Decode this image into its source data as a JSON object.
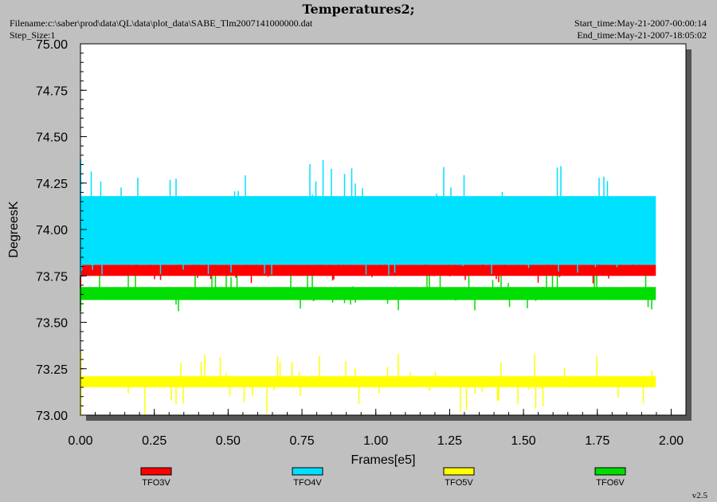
{
  "header": {
    "title": "Temperatures2;",
    "filename": "Filename:c:\\saber\\prod\\data\\QL\\data\\plot_data\\SABE_Tlm2007141000000.dat",
    "step_size": "Step_Size:1",
    "start_time": "Start_time:May-21-2007-00:00:14",
    "end_time": "End_time:May-21-2007-18:05:02"
  },
  "version": "v2.5",
  "chart_data": {
    "type": "line",
    "title": "Temperatures2;",
    "xlabel": "Frames[e5]",
    "ylabel": "DegreesK",
    "xlim": [
      0,
      2.05
    ],
    "ylim": [
      73.0,
      75.0
    ],
    "xticks": [
      "0.00",
      "0.25",
      "0.50",
      "0.75",
      "1.00",
      "1.25",
      "1.50",
      "1.75",
      "2.00"
    ],
    "yticks": [
      "73.00",
      "73.25",
      "73.50",
      "73.75",
      "74.00",
      "74.25",
      "74.50",
      "74.75",
      "75.00"
    ],
    "grid": false,
    "legend_position": "bottom",
    "series": [
      {
        "name": "TFO3V",
        "color": "#ff0000",
        "x_range": [
          0.0,
          1.95
        ],
        "band": [
          73.75,
          73.81
        ],
        "spike_max": 73.88,
        "dip_min": 73.69
      },
      {
        "name": "TFO4V",
        "color": "#00e0ff",
        "x_range": [
          0.0,
          1.95
        ],
        "band": [
          73.81,
          74.18
        ],
        "spike_max": 74.38,
        "dip_min": 73.75
      },
      {
        "name": "TFO5V",
        "color": "#ffff00",
        "x_range": [
          0.0,
          1.95
        ],
        "band": [
          73.15,
          73.21
        ],
        "spike_max": 73.34,
        "dip_min": 73.0
      },
      {
        "name": "TFO6V",
        "color": "#00dd00",
        "x_range": [
          0.0,
          1.95
        ],
        "band": [
          73.62,
          73.69
        ],
        "spike_max": 74.18,
        "dip_min": 73.56
      }
    ]
  }
}
